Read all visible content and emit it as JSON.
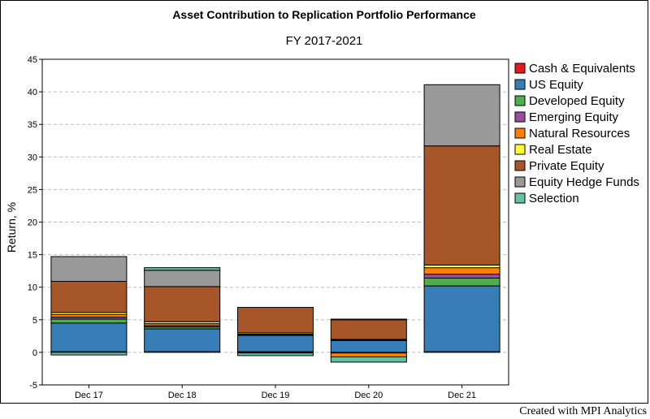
{
  "chart_data": {
    "type": "bar",
    "stacked": true,
    "title": "Asset Contribution to Replication Portfolio Performance",
    "subtitle": "FY 2017-2021",
    "xlabel": "",
    "ylabel": "Return, %",
    "ylim": [
      -5,
      45
    ],
    "yticks": [
      -5,
      0,
      5,
      10,
      15,
      20,
      25,
      30,
      35,
      40,
      45
    ],
    "grid": true,
    "legend_position": "right",
    "categories": [
      "Dec 17",
      "Dec 18",
      "Dec 19",
      "Dec 20",
      "Dec 21"
    ],
    "series": [
      {
        "name": "Cash & Equivalents",
        "color": "#e41a1c",
        "values": [
          0.1,
          0.1,
          0.1,
          0.0,
          0.1
        ]
      },
      {
        "name": "US Equity",
        "color": "#377eb8",
        "values": [
          4.4,
          3.5,
          2.5,
          1.8,
          10.1
        ]
      },
      {
        "name": "Developed Equity",
        "color": "#4daf4a",
        "values": [
          0.6,
          0.3,
          0.1,
          0.1,
          1.2
        ]
      },
      {
        "name": "Emerging Equity",
        "color": "#984ea3",
        "values": [
          0.3,
          0.2,
          0.1,
          -0.1,
          0.6
        ]
      },
      {
        "name": "Natural Resources",
        "color": "#ff7f00",
        "values": [
          0.4,
          0.3,
          -0.1,
          -0.6,
          1.0
        ]
      },
      {
        "name": "Real Estate",
        "color": "#ffff33",
        "values": [
          0.3,
          0.3,
          0.2,
          0.1,
          0.4
        ]
      },
      {
        "name": "Private Equity",
        "color": "#a65628",
        "values": [
          4.8,
          5.4,
          3.9,
          3.0,
          18.3
        ]
      },
      {
        "name": "Equity Hedge Funds",
        "color": "#999999",
        "values": [
          3.8,
          2.5,
          0.0,
          0.1,
          9.4
        ]
      },
      {
        "name": "Selection",
        "color": "#66c2a5",
        "values": [
          -0.4,
          0.4,
          -0.4,
          -0.8,
          0.0
        ]
      }
    ]
  },
  "credit": "Created with MPI Analytics"
}
